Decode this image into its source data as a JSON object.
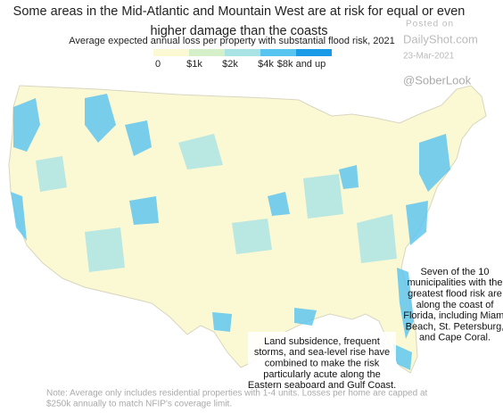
{
  "title": [
    "Some areas in the Mid-Atlantic and Mountain West are at risk for equal or even",
    "higher damage than the coasts"
  ],
  "legend": {
    "title": "Average expected annual loss per property with substantial flood risk, 2021",
    "labels": [
      "0",
      "$1k",
      "$2k",
      "$4k",
      "$8k and up"
    ],
    "colors": [
      "#fbf8d4",
      "#d5efc9",
      "#a9e3e6",
      "#58c4f0",
      "#1a9be8"
    ]
  },
  "watermark": {
    "posted": "Posted on",
    "site": "DailyShot.com",
    "date": "23-Mar-2021",
    "handle": "@SoberLook"
  },
  "annotations": [
    [
      "Seven of the 10",
      "municipalities with the",
      "greatest flood risk are",
      "along the coast of",
      "Florida, including Miami",
      "Beach, St. Petersburg,",
      "and Cape Coral."
    ],
    [
      "Land subsidence, frequent",
      "storms, and sea-level rise have",
      "combined to make the risk",
      "particularly acute along the",
      "Eastern seaboard and Gulf Coast."
    ]
  ],
  "note": [
    "Note: Average only includes residential properties with 1-4 units. Losses per home are capped at",
    "$250k annually to match NFIP's coverage limit."
  ]
}
